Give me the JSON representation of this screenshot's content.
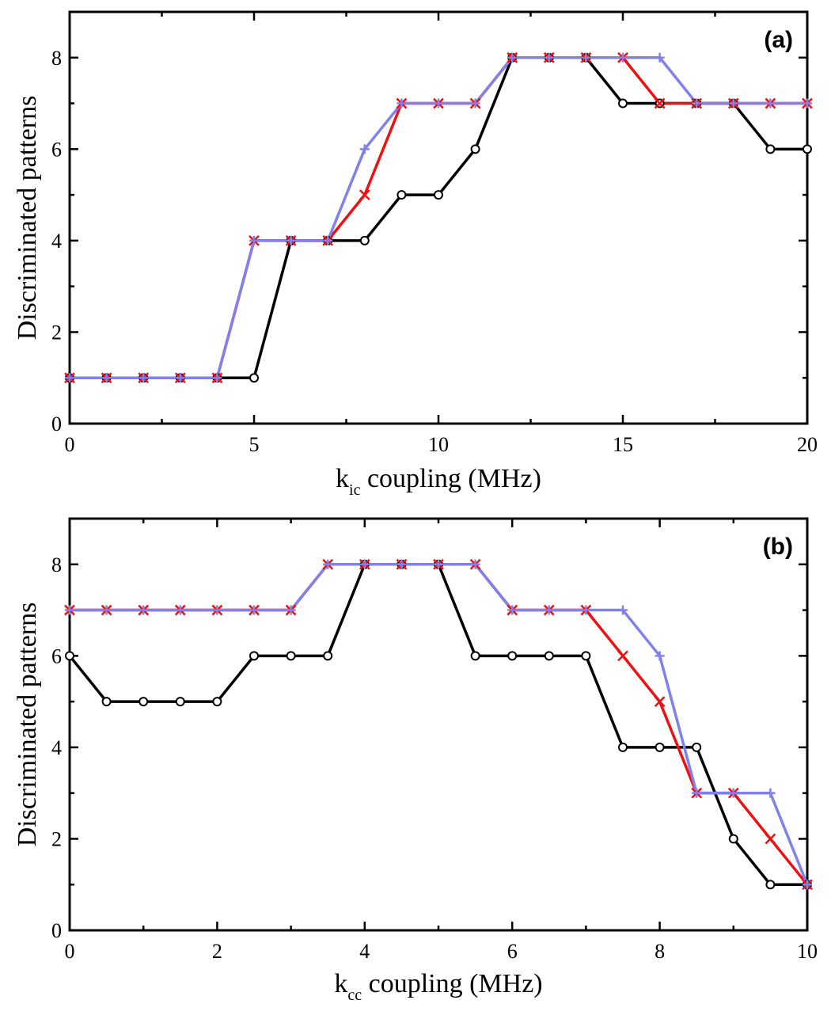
{
  "chart_data": [
    {
      "type": "line",
      "panel": "(a)",
      "xlabel_main": "k",
      "xlabel_sub": "ic",
      "xlabel_rest": " coupling (MHz)",
      "ylabel": "Discriminated patterns",
      "xlim": [
        0,
        20
      ],
      "ylim": [
        0,
        9
      ],
      "xticks": [
        0,
        5,
        10,
        15,
        20
      ],
      "yticks": [
        0,
        2,
        4,
        6,
        8
      ],
      "series": [
        {
          "name": "black-circles",
          "color": "#000000",
          "marker": "circle",
          "x": [
            0,
            1,
            2,
            3,
            4,
            5,
            6,
            7,
            8,
            9,
            10,
            11,
            12,
            13,
            14,
            15,
            16,
            17,
            18,
            19,
            20
          ],
          "y": [
            1,
            1,
            1,
            1,
            1,
            1,
            4,
            4,
            4,
            5,
            5,
            6,
            8,
            8,
            8,
            7,
            7,
            7,
            7,
            6,
            6
          ]
        },
        {
          "name": "red-crosses",
          "color": "#ee1111",
          "marker": "x",
          "x": [
            0,
            1,
            2,
            3,
            4,
            5,
            6,
            7,
            8,
            9,
            10,
            11,
            12,
            13,
            14,
            15,
            16,
            17,
            18,
            19,
            20
          ],
          "y": [
            1,
            1,
            1,
            1,
            1,
            4,
            4,
            4,
            5,
            7,
            7,
            7,
            8,
            8,
            8,
            8,
            7,
            7,
            7,
            7,
            7
          ]
        },
        {
          "name": "blue-plus",
          "color": "#8080ee",
          "marker": "plus",
          "x": [
            0,
            1,
            2,
            3,
            4,
            5,
            6,
            7,
            8,
            9,
            10,
            11,
            12,
            13,
            14,
            15,
            16,
            17,
            18,
            19,
            20
          ],
          "y": [
            1,
            1,
            1,
            1,
            1,
            4,
            4,
            4,
            6,
            7,
            7,
            7,
            8,
            8,
            8,
            8,
            8,
            7,
            7,
            7,
            7
          ]
        }
      ]
    },
    {
      "type": "line",
      "panel": "(b)",
      "xlabel_main": "k",
      "xlabel_sub": "cc",
      "xlabel_rest": " coupling (MHz)",
      "ylabel": "Discriminated patterns",
      "xlim": [
        0,
        10
      ],
      "ylim": [
        0,
        9
      ],
      "xticks": [
        0,
        2,
        4,
        6,
        8,
        10
      ],
      "yticks": [
        0,
        2,
        4,
        6,
        8
      ],
      "series": [
        {
          "name": "black-circles",
          "color": "#000000",
          "marker": "circle",
          "x": [
            0,
            0.5,
            1,
            1.5,
            2,
            2.5,
            3,
            3.5,
            4,
            4.5,
            5,
            5.5,
            6,
            6.5,
            7,
            7.5,
            8,
            8.5,
            9,
            9.5,
            10
          ],
          "y": [
            6,
            5,
            5,
            5,
            5,
            6,
            6,
            6,
            8,
            8,
            8,
            6,
            6,
            6,
            6,
            4,
            4,
            4,
            2,
            1,
            1
          ]
        },
        {
          "name": "red-crosses",
          "color": "#ee1111",
          "marker": "x",
          "x": [
            0,
            0.5,
            1,
            1.5,
            2,
            2.5,
            3,
            3.5,
            4,
            4.5,
            5,
            5.5,
            6,
            6.5,
            7,
            7.5,
            8,
            8.5,
            9,
            9.5,
            10
          ],
          "y": [
            7,
            7,
            7,
            7,
            7,
            7,
            7,
            8,
            8,
            8,
            8,
            8,
            7,
            7,
            7,
            6,
            5,
            3,
            3,
            2,
            1
          ]
        },
        {
          "name": "blue-plus",
          "color": "#8080ee",
          "marker": "plus",
          "x": [
            0,
            0.5,
            1,
            1.5,
            2,
            2.5,
            3,
            3.5,
            4,
            4.5,
            5,
            5.5,
            6,
            6.5,
            7,
            7.5,
            8,
            8.5,
            9,
            9.5,
            10
          ],
          "y": [
            7,
            7,
            7,
            7,
            7,
            7,
            7,
            8,
            8,
            8,
            8,
            8,
            7,
            7,
            7,
            7,
            6,
            3,
            3,
            3,
            1
          ]
        }
      ]
    }
  ]
}
